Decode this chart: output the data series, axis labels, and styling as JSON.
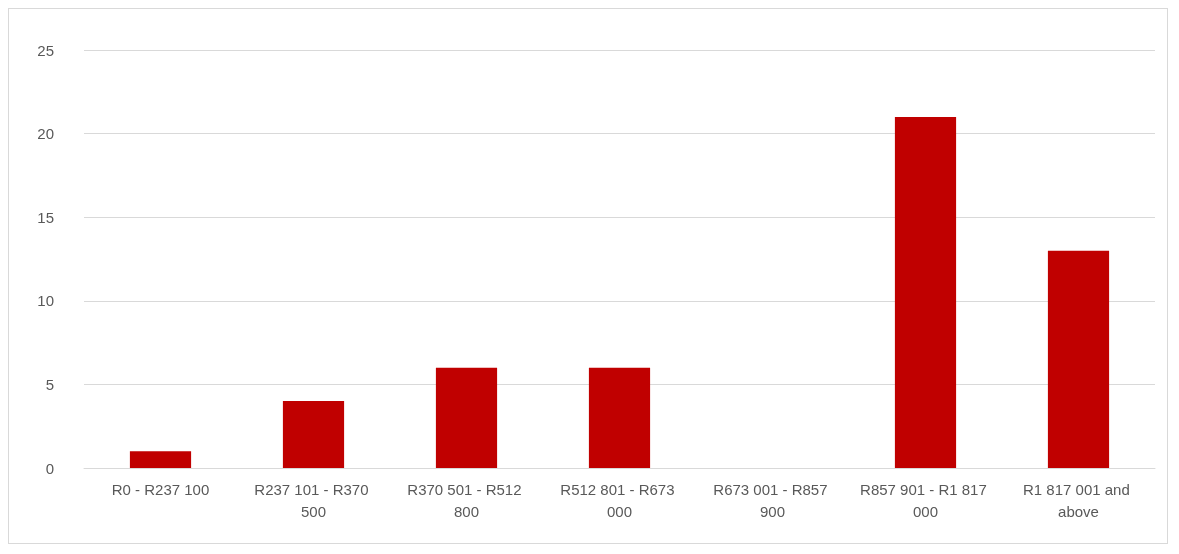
{
  "chart_data": {
    "type": "bar",
    "categories": [
      "R0 - R237 100",
      "R237 101 - R370 500",
      "R370 501 - R512 800",
      "R512 801 - R673 000",
      "R673 001 - R857 900",
      "R857 901 - R1 817 000",
      "R1 817 001 and above"
    ],
    "values": [
      1,
      4,
      6,
      6,
      0,
      21,
      13
    ],
    "color": "#c00000",
    "ylim": [
      0,
      25
    ],
    "yticks": [
      0,
      5,
      10,
      15,
      20,
      25
    ],
    "grid": "y"
  }
}
